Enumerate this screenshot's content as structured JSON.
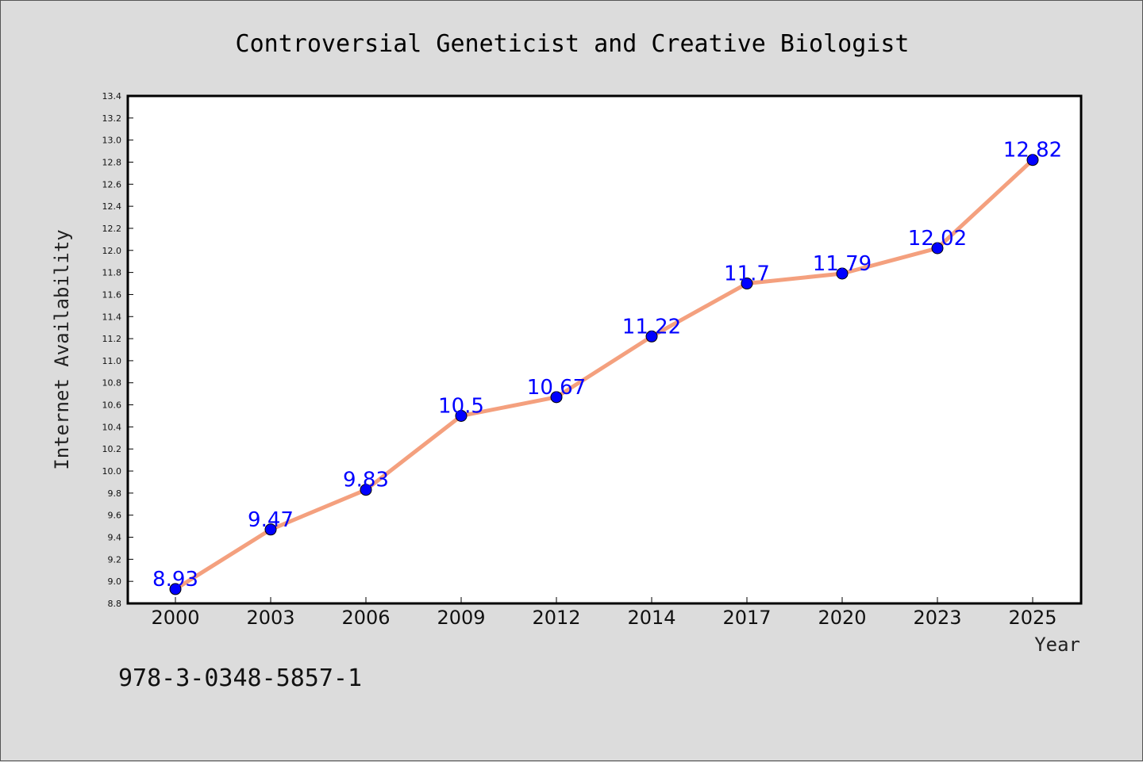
{
  "chart_data": {
    "type": "line",
    "title": "Controversial Geneticist and Creative Biologist",
    "xlabel": "Year",
    "ylabel": "Internet Availability",
    "categories": [
      "2000",
      "2003",
      "2006",
      "2009",
      "2012",
      "2014",
      "2017",
      "2020",
      "2023",
      "2025"
    ],
    "values": [
      8.93,
      9.47,
      9.83,
      10.5,
      10.67,
      11.22,
      11.7,
      11.79,
      12.02,
      12.82
    ],
    "data_labels": [
      "8.93",
      "9.47",
      "9.83",
      "10.5",
      "10.67",
      "11.22",
      "11.7",
      "11.79",
      "12.02",
      "12.82"
    ],
    "ylim": [
      8.8,
      13.4
    ],
    "yticks": [
      "8.8",
      "9.0",
      "9.2",
      "9.4",
      "9.6",
      "9.8",
      "10.0",
      "10.2",
      "10.4",
      "10.6",
      "10.8",
      "11.0",
      "11.2",
      "11.4",
      "11.6",
      "11.8",
      "12.0",
      "12.2",
      "12.4",
      "12.6",
      "12.8",
      "13.0",
      "13.2",
      "13.4"
    ],
    "grid": false,
    "line_color": "#f4a07e",
    "marker_color": "#0000ff",
    "label_color": "#0000ff"
  },
  "footnote": "978-3-0348-5857-1"
}
